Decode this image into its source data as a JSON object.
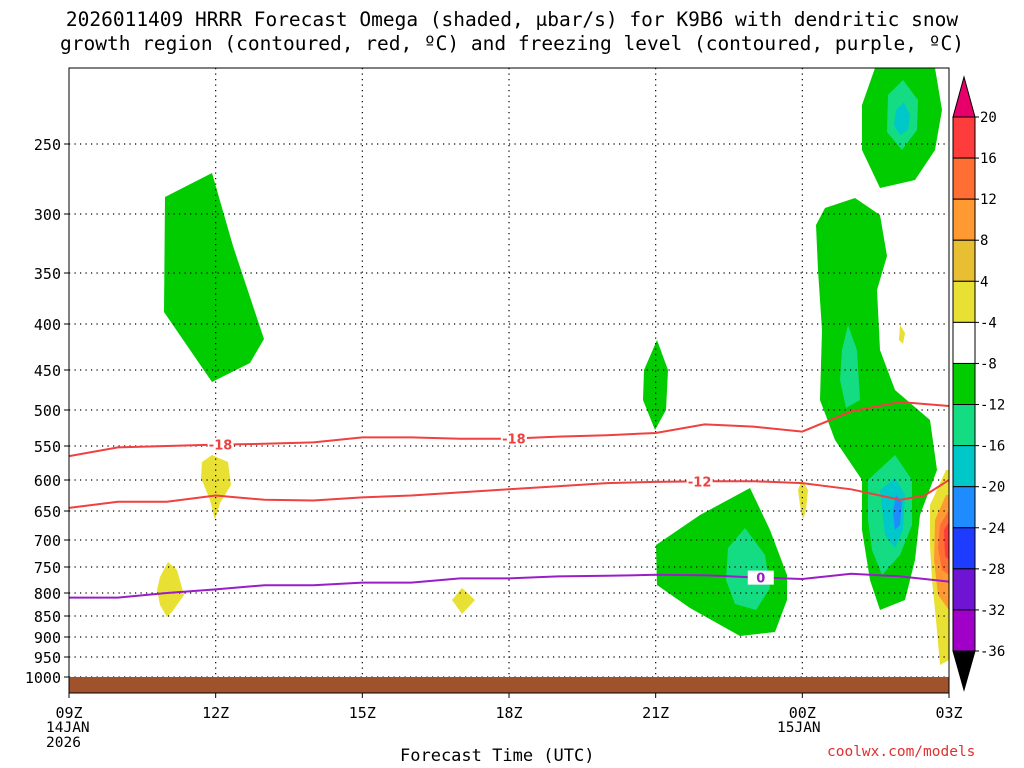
{
  "title": {
    "line1": "2026011409 HRRR Forecast Omega (shaded, μbar/s) for K9B6 with dendritic snow",
    "line2": "growth region (contoured, red, ºC) and freezing level (contoured, purple, ºC)"
  },
  "x_axis": {
    "label": "Forecast Time (UTC)",
    "start_date": [
      "14JAN",
      "2026"
    ],
    "second_date": [
      "15JAN"
    ]
  },
  "credit": "coolwx.com/models",
  "chart_data": {
    "type": "time-height cross section",
    "x_hours": [
      0,
      18
    ],
    "x_ticks": [
      {
        "h": 0,
        "label": "09Z"
      },
      {
        "h": 3,
        "label": "12Z"
      },
      {
        "h": 6,
        "label": "15Z"
      },
      {
        "h": 9,
        "label": "18Z"
      },
      {
        "h": 12,
        "label": "21Z"
      },
      {
        "h": 15,
        "label": "00Z"
      },
      {
        "h": 18,
        "label": "03Z"
      }
    ],
    "y_ticks": [
      250,
      300,
      350,
      400,
      450,
      500,
      550,
      600,
      650,
      700,
      750,
      800,
      850,
      900,
      950,
      1000
    ],
    "colorbar": {
      "levels": [
        20,
        16,
        12,
        8,
        4,
        -4,
        -8,
        -12,
        -16,
        -20,
        -24,
        -28,
        -32,
        -36
      ],
      "colors": [
        "#e8006a",
        "#ff3c3c",
        "#ff6e32",
        "#ff9a32",
        "#e8be32",
        "#e8e032",
        "#ffffff",
        "#00cc00",
        "#14dc82",
        "#00c8c8",
        "#1e8cff",
        "#1e3cff",
        "#6e14d2",
        "#a000c8",
        "#969696",
        "#000000"
      ]
    },
    "contours": [
      {
        "name": "dgz_-18",
        "color": "#f04040",
        "label": "-18",
        "label_at_h": [
          3.1,
          9.1
        ],
        "points": [
          [
            0,
            565
          ],
          [
            1,
            552
          ],
          [
            2,
            550
          ],
          [
            3,
            548
          ],
          [
            4,
            547
          ],
          [
            5,
            545
          ],
          [
            6,
            538
          ],
          [
            7,
            538
          ],
          [
            8,
            540
          ],
          [
            9,
            540
          ],
          [
            10,
            537
          ],
          [
            11,
            535
          ],
          [
            12,
            532
          ],
          [
            13,
            520
          ],
          [
            14,
            523
          ],
          [
            15,
            530
          ],
          [
            16,
            502
          ],
          [
            17,
            490
          ],
          [
            18,
            495
          ]
        ]
      },
      {
        "name": "dgz_-12",
        "color": "#f04040",
        "label": "-12",
        "label_at_h": [
          12.9
        ],
        "points": [
          [
            0,
            645
          ],
          [
            1,
            635
          ],
          [
            2,
            635
          ],
          [
            3,
            625
          ],
          [
            4,
            632
          ],
          [
            5,
            633
          ],
          [
            6,
            628
          ],
          [
            7,
            625
          ],
          [
            8,
            620
          ],
          [
            9,
            615
          ],
          [
            10,
            610
          ],
          [
            11,
            605
          ],
          [
            12,
            603
          ],
          [
            13,
            602
          ],
          [
            14,
            602
          ],
          [
            15,
            605
          ],
          [
            16,
            615
          ],
          [
            17,
            632
          ],
          [
            17.5,
            625
          ],
          [
            18,
            600
          ]
        ]
      },
      {
        "name": "freezing_0",
        "color": "#9a1ec8",
        "label": "0",
        "label_at_h": [
          14.15
        ],
        "points": [
          [
            0,
            810
          ],
          [
            1,
            810
          ],
          [
            2,
            800
          ],
          [
            3,
            793
          ],
          [
            4,
            785
          ],
          [
            5,
            785
          ],
          [
            6,
            780
          ],
          [
            7,
            780
          ],
          [
            8,
            772
          ],
          [
            9,
            772
          ],
          [
            10,
            768
          ],
          [
            11,
            767
          ],
          [
            12,
            765
          ],
          [
            13,
            766
          ],
          [
            14,
            770
          ],
          [
            15,
            773
          ],
          [
            16,
            763
          ],
          [
            17,
            768
          ],
          [
            18,
            778
          ]
        ]
      }
    ]
  }
}
